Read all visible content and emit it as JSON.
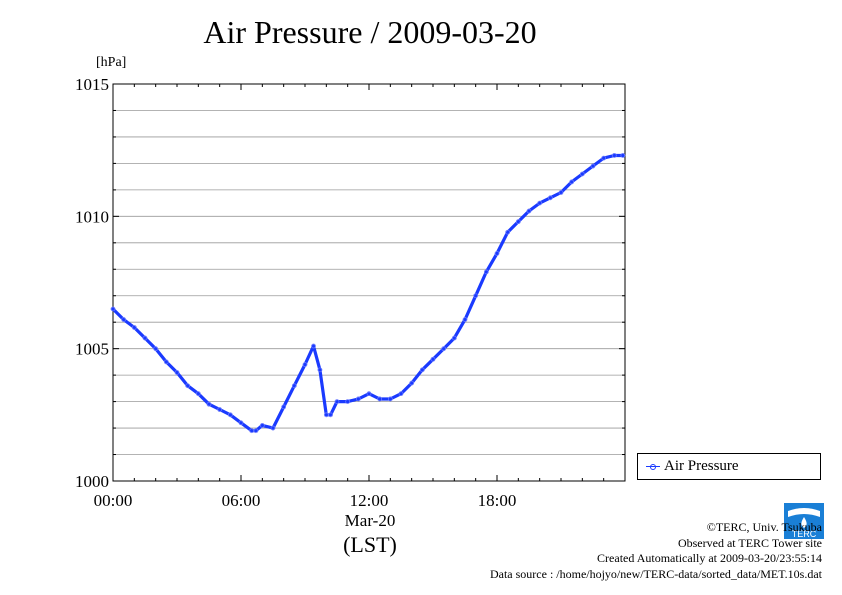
{
  "chart_data": {
    "type": "line",
    "title": "Air Pressure / 2009-03-20",
    "ylabel": "[hPa]",
    "xlabel": "Mar-20",
    "xlabel_sub": "(LST)",
    "xlim": [
      0,
      24
    ],
    "ylim": [
      1000,
      1015
    ],
    "xticks": [
      {
        "value": 0,
        "label": "00:00"
      },
      {
        "value": 6,
        "label": "06:00"
      },
      {
        "value": 12,
        "label": "12:00"
      },
      {
        "value": 18,
        "label": "18:00"
      }
    ],
    "yticks": [
      {
        "value": 1000,
        "label": "1000"
      },
      {
        "value": 1005,
        "label": "1005"
      },
      {
        "value": 1010,
        "label": "1010"
      },
      {
        "value": 1015,
        "label": "1015"
      }
    ],
    "grid": true,
    "legend_position": "lower-right-outside",
    "series": [
      {
        "name": "Air Pressure",
        "color": "#1a3aff",
        "x": [
          0,
          0.5,
          1.0,
          1.5,
          2.0,
          2.5,
          3.0,
          3.5,
          4.0,
          4.5,
          5.0,
          5.5,
          6.0,
          6.5,
          6.7,
          7.0,
          7.5,
          8.0,
          8.5,
          9.0,
          9.4,
          9.7,
          10.0,
          10.2,
          10.5,
          11.0,
          11.5,
          12.0,
          12.5,
          13.0,
          13.5,
          14.0,
          14.5,
          15.0,
          15.5,
          16.0,
          16.5,
          17.0,
          17.5,
          18.0,
          18.5,
          19.0,
          19.5,
          20.0,
          20.5,
          21.0,
          21.5,
          22.0,
          22.5,
          23.0,
          23.5,
          23.9
        ],
        "y": [
          1006.5,
          1006.1,
          1005.8,
          1005.4,
          1005.0,
          1004.5,
          1004.1,
          1003.6,
          1003.3,
          1002.9,
          1002.7,
          1002.5,
          1002.2,
          1001.9,
          1001.9,
          1002.1,
          1002.0,
          1002.8,
          1003.6,
          1004.4,
          1005.1,
          1004.2,
          1002.5,
          1002.5,
          1003.0,
          1003.0,
          1003.1,
          1003.3,
          1003.1,
          1003.1,
          1003.3,
          1003.7,
          1004.2,
          1004.6,
          1005.0,
          1005.4,
          1006.1,
          1007.0,
          1007.9,
          1008.6,
          1009.4,
          1009.8,
          1010.2,
          1010.5,
          1010.7,
          1010.9,
          1011.3,
          1011.6,
          1011.9,
          1012.2,
          1012.3,
          1012.3
        ]
      }
    ]
  },
  "page": {
    "title": "Air Pressure / 2009-03-20",
    "unit": "[hPa]",
    "x_date": "Mar-20",
    "x_lst": "(LST)",
    "legend_label": "Air Pressure"
  },
  "credits": {
    "copyright": "©TERC, Univ. Tsukuba",
    "observed": "Observed at TERC Tower site",
    "created": "Created Automatically at 2009-03-20/23:55:14",
    "source": "Data source : /home/hojyo/new/TERC-data/sorted_data/MET.10s.dat"
  },
  "logo": {
    "text": "TERC",
    "color": "#1a7fd6",
    "icon": "terc-logo-icon"
  }
}
